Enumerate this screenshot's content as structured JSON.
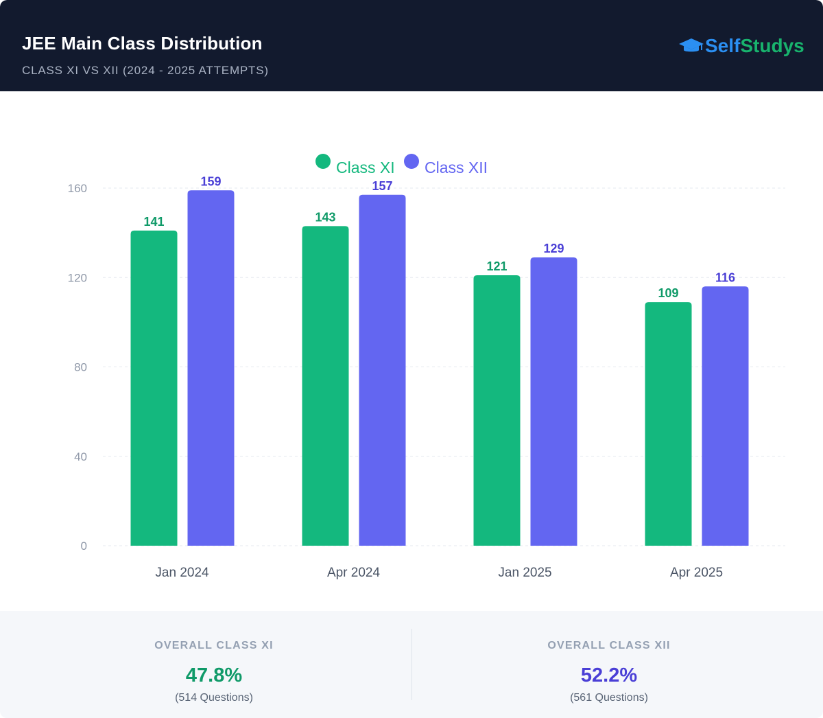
{
  "header": {
    "title": "JEE Main Class Distribution",
    "subtitle": "CLASS XI VS XII (2024 - 2025 ATTEMPTS)",
    "logo": {
      "part1": "Self",
      "part2": "Studys",
      "icon": "graduation-cap-icon"
    }
  },
  "colors": {
    "header_bg": "#121a2e",
    "class_xi": "#14b87e",
    "class_xii": "#6366f1",
    "class_xi_label": "#0f9a68",
    "class_xii_label": "#4a3fd6"
  },
  "chart_data": {
    "type": "bar",
    "categories": [
      "Jan 2024",
      "Apr 2024",
      "Jan 2025",
      "Apr 2025"
    ],
    "series": [
      {
        "name": "Class XI",
        "values": [
          141,
          143,
          121,
          109
        ]
      },
      {
        "name": "Class XII",
        "values": [
          159,
          157,
          129,
          116
        ]
      }
    ],
    "ylim": [
      0,
      160
    ],
    "yticks": [
      0,
      40,
      80,
      120,
      160
    ],
    "grid": true,
    "legend": "top-center",
    "data_labels": true
  },
  "footer": {
    "left": {
      "label": "OVERALL CLASS XI",
      "value": "47.8%",
      "count": "(514 Questions)"
    },
    "right": {
      "label": "OVERALL CLASS XII",
      "value": "52.2%",
      "count": "(561 Questions)"
    }
  }
}
